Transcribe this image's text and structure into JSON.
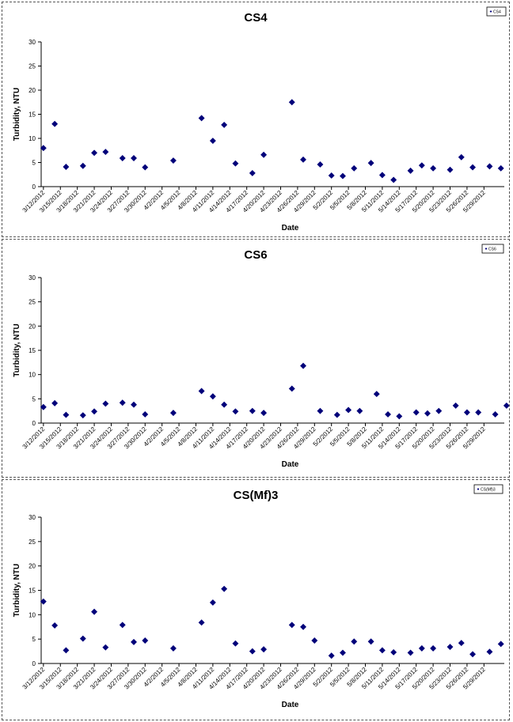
{
  "dates": [
    "3/12/2012",
    "3/15/2012",
    "3/18/2012",
    "3/21/2012",
    "3/24/2012",
    "3/27/2012",
    "3/30/2012",
    "4/2/2012",
    "4/5/2012",
    "4/8/2012",
    "4/11/2012",
    "4/14/2012",
    "4/17/2012",
    "4/20/2012",
    "4/23/2012",
    "4/26/2012",
    "4/29/2012",
    "5/2/2012",
    "5/5/2012",
    "5/8/2012",
    "5/11/2012",
    "5/14/2012",
    "5/17/2012",
    "5/20/2012",
    "5/23/2012",
    "5/26/2012",
    "5/29/2012"
  ],
  "colors": {
    "marker": "#00007a",
    "axis": "#000000"
  },
  "chart_data": [
    {
      "type": "scatter",
      "title": "CS4",
      "xlabel": "Date",
      "ylabel": "Turbidity, NTU",
      "ylim": [
        0,
        30
      ],
      "yticks": [
        0,
        5,
        10,
        15,
        20,
        25,
        30
      ],
      "grid": false,
      "legend": "top-right",
      "series": [
        {
          "name": "CS4",
          "points": [
            {
              "x": "3/12/2012",
              "y": 8.0
            },
            {
              "x": "3/14/2012",
              "y": 13.0
            },
            {
              "x": "3/16/2012",
              "y": 4.1
            },
            {
              "x": "3/19/2012",
              "y": 4.3
            },
            {
              "x": "3/21/2012",
              "y": 7.0
            },
            {
              "x": "3/23/2012",
              "y": 7.2
            },
            {
              "x": "3/26/2012",
              "y": 5.9
            },
            {
              "x": "3/28/2012",
              "y": 5.9
            },
            {
              "x": "3/30/2012",
              "y": 4.0
            },
            {
              "x": "4/4/2012",
              "y": 5.4
            },
            {
              "x": "4/9/2012",
              "y": 14.2
            },
            {
              "x": "4/11/2012",
              "y": 9.5
            },
            {
              "x": "4/13/2012",
              "y": 12.8
            },
            {
              "x": "4/15/2012",
              "y": 4.8
            },
            {
              "x": "4/18/2012",
              "y": 2.8
            },
            {
              "x": "4/20/2012",
              "y": 6.6
            },
            {
              "x": "4/25/2012",
              "y": 17.5
            },
            {
              "x": "4/27/2012",
              "y": 5.6
            },
            {
              "x": "4/30/2012",
              "y": 4.6
            },
            {
              "x": "5/2/2012",
              "y": 2.3
            },
            {
              "x": "5/4/2012",
              "y": 2.2
            },
            {
              "x": "5/6/2012",
              "y": 3.8
            },
            {
              "x": "5/9/2012",
              "y": 4.9
            },
            {
              "x": "5/11/2012",
              "y": 2.4
            },
            {
              "x": "5/13/2012",
              "y": 1.4
            },
            {
              "x": "5/16/2012",
              "y": 3.3
            },
            {
              "x": "5/18/2012",
              "y": 4.4
            },
            {
              "x": "5/20/2012",
              "y": 3.8
            },
            {
              "x": "5/23/2012",
              "y": 3.5
            },
            {
              "x": "5/25/2012",
              "y": 6.1
            },
            {
              "x": "5/27/2012",
              "y": 4.0
            },
            {
              "x": "5/30/2012",
              "y": 4.2
            },
            {
              "x": "6/1/2012",
              "y": 3.8
            }
          ]
        }
      ]
    },
    {
      "type": "scatter",
      "title": "CS6",
      "xlabel": "Date",
      "ylabel": "Turbidity, NTU",
      "ylim": [
        0,
        30
      ],
      "yticks": [
        0,
        5,
        10,
        15,
        20,
        25,
        30
      ],
      "grid": false,
      "legend": "top-right",
      "series": [
        {
          "name": "CS6",
          "points": [
            {
              "x": "3/12/2012",
              "y": 3.3
            },
            {
              "x": "3/14/2012",
              "y": 4.1
            },
            {
              "x": "3/16/2012",
              "y": 1.7
            },
            {
              "x": "3/19/2012",
              "y": 1.6
            },
            {
              "x": "3/21/2012",
              "y": 2.4
            },
            {
              "x": "3/23/2012",
              "y": 4.0
            },
            {
              "x": "3/26/2012",
              "y": 4.2
            },
            {
              "x": "3/28/2012",
              "y": 3.8
            },
            {
              "x": "3/30/2012",
              "y": 1.8
            },
            {
              "x": "4/4/2012",
              "y": 2.1
            },
            {
              "x": "4/9/2012",
              "y": 6.6
            },
            {
              "x": "4/11/2012",
              "y": 5.5
            },
            {
              "x": "4/13/2012",
              "y": 3.8
            },
            {
              "x": "4/15/2012",
              "y": 2.4
            },
            {
              "x": "4/18/2012",
              "y": 2.5
            },
            {
              "x": "4/20/2012",
              "y": 2.1
            },
            {
              "x": "4/25/2012",
              "y": 7.1
            },
            {
              "x": "4/27/2012",
              "y": 11.8
            },
            {
              "x": "4/30/2012",
              "y": 2.5
            },
            {
              "x": "5/3/2012",
              "y": 1.7
            },
            {
              "x": "5/5/2012",
              "y": 2.7
            },
            {
              "x": "5/7/2012",
              "y": 2.5
            },
            {
              "x": "5/10/2012",
              "y": 6.0
            },
            {
              "x": "5/12/2012",
              "y": 1.8
            },
            {
              "x": "5/14/2012",
              "y": 1.4
            },
            {
              "x": "5/17/2012",
              "y": 2.2
            },
            {
              "x": "5/19/2012",
              "y": 2.0
            },
            {
              "x": "5/21/2012",
              "y": 2.5
            },
            {
              "x": "5/24/2012",
              "y": 3.6
            },
            {
              "x": "5/26/2012",
              "y": 2.2
            },
            {
              "x": "5/28/2012",
              "y": 2.2
            },
            {
              "x": "5/31/2012",
              "y": 1.8
            },
            {
              "x": "6/2/2012",
              "y": 3.6
            }
          ]
        }
      ]
    },
    {
      "type": "scatter",
      "title": "CS(Mf)3",
      "xlabel": "Date",
      "ylabel": "Turbidity, NTU",
      "ylim": [
        0,
        30
      ],
      "yticks": [
        0,
        5,
        10,
        15,
        20,
        25,
        30
      ],
      "grid": false,
      "legend": "top-right",
      "series": [
        {
          "name": "CS(Mf)3",
          "points": [
            {
              "x": "3/12/2012",
              "y": 12.7
            },
            {
              "x": "3/14/2012",
              "y": 7.8
            },
            {
              "x": "3/16/2012",
              "y": 2.7
            },
            {
              "x": "3/19/2012",
              "y": 5.1
            },
            {
              "x": "3/21/2012",
              "y": 10.6
            },
            {
              "x": "3/23/2012",
              "y": 3.3
            },
            {
              "x": "3/26/2012",
              "y": 7.9
            },
            {
              "x": "3/28/2012",
              "y": 4.4
            },
            {
              "x": "3/30/2012",
              "y": 4.7
            },
            {
              "x": "4/4/2012",
              "y": 3.1
            },
            {
              "x": "4/9/2012",
              "y": 8.4
            },
            {
              "x": "4/11/2012",
              "y": 12.5
            },
            {
              "x": "4/13/2012",
              "y": 15.3
            },
            {
              "x": "4/15/2012",
              "y": 4.1
            },
            {
              "x": "4/18/2012",
              "y": 2.5
            },
            {
              "x": "4/20/2012",
              "y": 2.9
            },
            {
              "x": "4/25/2012",
              "y": 7.9
            },
            {
              "x": "4/27/2012",
              "y": 7.5
            },
            {
              "x": "4/29/2012",
              "y": 4.7
            },
            {
              "x": "5/2/2012",
              "y": 1.6
            },
            {
              "x": "5/4/2012",
              "y": 2.2
            },
            {
              "x": "5/6/2012",
              "y": 4.5
            },
            {
              "x": "5/9/2012",
              "y": 4.5
            },
            {
              "x": "5/11/2012",
              "y": 2.7
            },
            {
              "x": "5/13/2012",
              "y": 2.3
            },
            {
              "x": "5/16/2012",
              "y": 2.2
            },
            {
              "x": "5/18/2012",
              "y": 3.1
            },
            {
              "x": "5/20/2012",
              "y": 3.1
            },
            {
              "x": "5/23/2012",
              "y": 3.4
            },
            {
              "x": "5/25/2012",
              "y": 4.2
            },
            {
              "x": "5/27/2012",
              "y": 1.9
            },
            {
              "x": "5/30/2012",
              "y": 2.4
            },
            {
              "x": "6/1/2012",
              "y": 4.0
            }
          ]
        }
      ]
    }
  ]
}
